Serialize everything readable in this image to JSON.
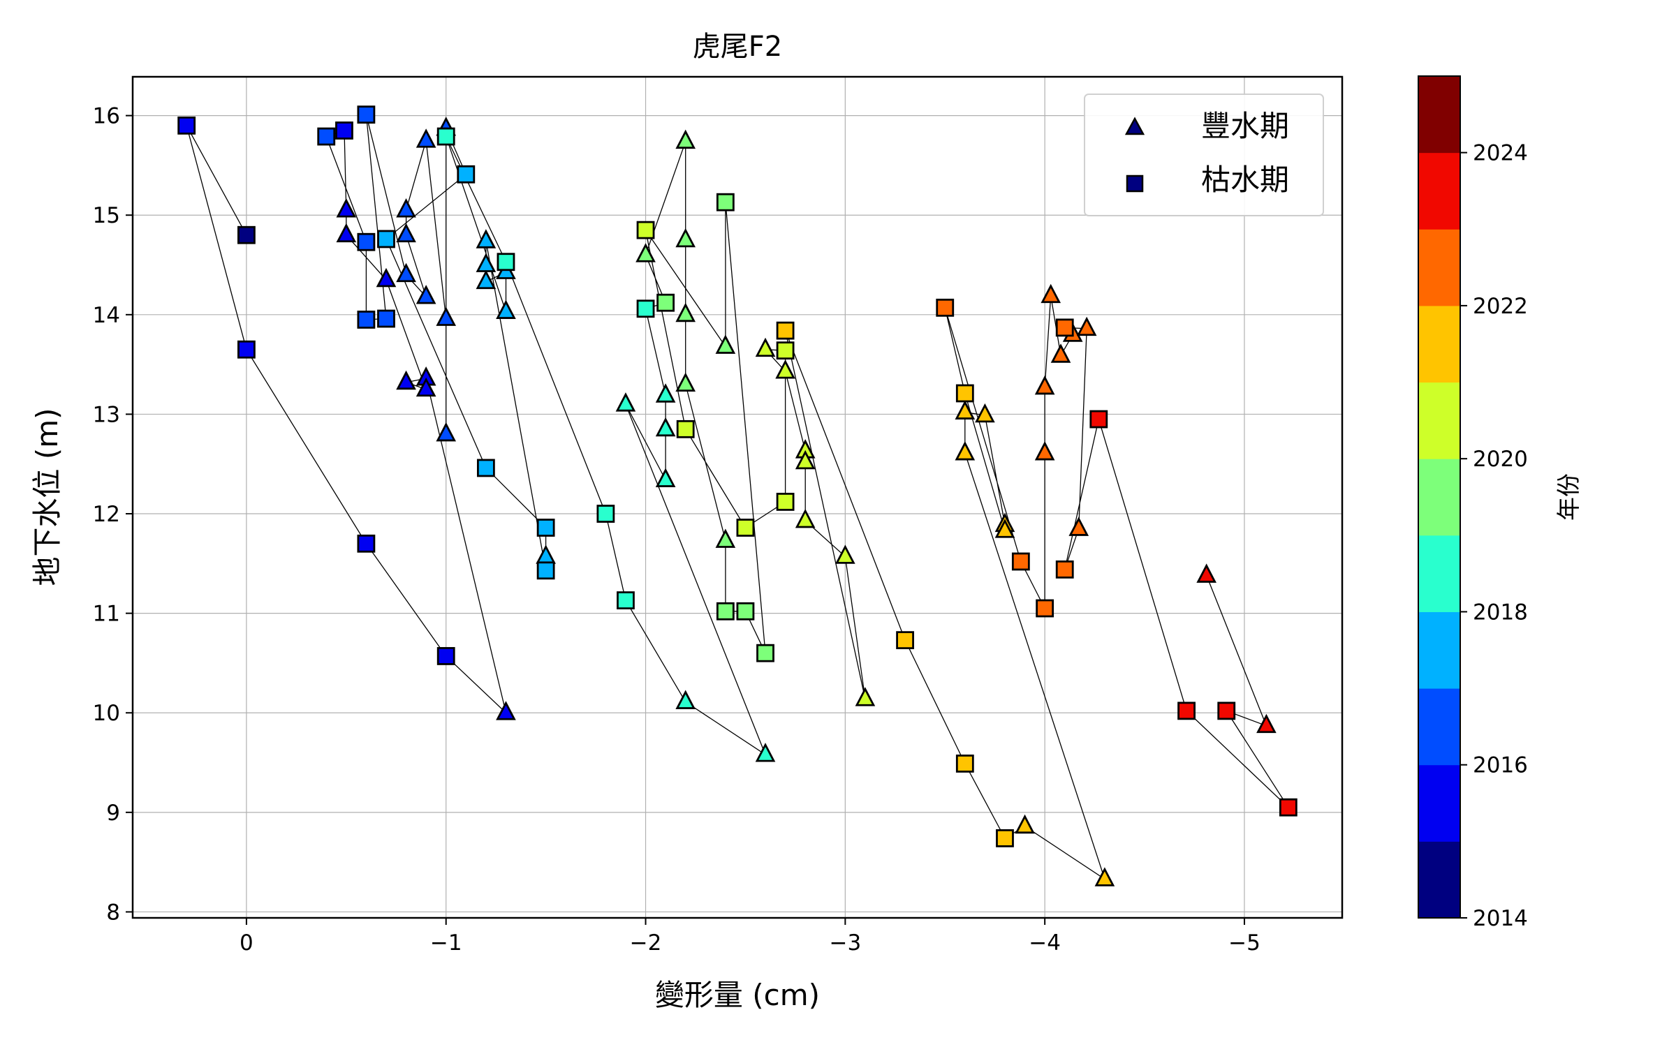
{
  "chart_data": {
    "type": "scatter",
    "title": "虎尾F2",
    "xlabel": "變形量 (cm)",
    "ylabel": "地下水位 (m)",
    "xlim": [
      0.57,
      -5.49
    ],
    "ylim": [
      7.94,
      16.39
    ],
    "xticks": [
      0,
      -1,
      -2,
      -3,
      -4,
      -5
    ],
    "xtick_labels": [
      "0",
      "−1",
      "−2",
      "−3",
      "−4",
      "−5"
    ],
    "yticks": [
      8,
      9,
      10,
      11,
      12,
      13,
      14,
      15,
      16
    ],
    "ytick_labels": [
      "8",
      "9",
      "10",
      "11",
      "12",
      "13",
      "14",
      "15",
      "16"
    ],
    "grid": true,
    "legend": {
      "placement": "top-right",
      "entries": [
        {
          "label": "豐水期",
          "marker": "triangle",
          "key": "wet"
        },
        {
          "label": "枯水期",
          "marker": "square",
          "key": "dry"
        }
      ],
      "marker_color": "#000080"
    },
    "colorbar": {
      "label": "年份",
      "range": [
        2014,
        2025
      ],
      "ticks": [
        2014,
        2016,
        2018,
        2020,
        2022,
        2024
      ],
      "tick_labels": [
        "2014",
        "2016",
        "2018",
        "2020",
        "2022",
        "2024"
      ],
      "year_colors": {
        "2014": "#000080",
        "2015": "#0000f1",
        "2016": "#004dff",
        "2017": "#00b1ff",
        "2018": "#29ffce",
        "2019": "#7dff7a",
        "2020": "#ceff29",
        "2021": "#ffc400",
        "2022": "#ff6800",
        "2023": "#f10800",
        "2024": "#800000"
      }
    },
    "series_fields": [
      "season",
      "year",
      "deformation_cm",
      "groundwater_m"
    ],
    "points": [
      [
        "dry",
        2014,
        0,
        14.8
      ],
      [
        "dry",
        2015,
        0.3,
        15.9
      ],
      [
        "dry",
        2015,
        0,
        13.65
      ],
      [
        "dry",
        2015,
        -0.6,
        11.7
      ],
      [
        "dry",
        2015,
        -1.0,
        10.57
      ],
      [
        "wet",
        2015,
        -1.3,
        10.0
      ],
      [
        "wet",
        2015,
        -0.9,
        13.36
      ],
      [
        "wet",
        2015,
        -0.8,
        13.32
      ],
      [
        "wet",
        2015,
        -0.9,
        13.25
      ],
      [
        "wet",
        2015,
        -0.7,
        14.35
      ],
      [
        "wet",
        2015,
        -0.5,
        14.8
      ],
      [
        "wet",
        2015,
        -0.5,
        15.05
      ],
      [
        "dry",
        2015,
        -0.49,
        15.85
      ],
      [
        "dry",
        2016,
        -0.4,
        15.79
      ],
      [
        "dry",
        2016,
        -0.6,
        14.73
      ],
      [
        "dry",
        2016,
        -0.6,
        13.95
      ],
      [
        "dry",
        2016,
        -0.7,
        13.96
      ],
      [
        "dry",
        2016,
        -0.6,
        16.01
      ],
      [
        "wet",
        2016,
        -0.8,
        14.4
      ],
      [
        "wet",
        2016,
        -0.9,
        14.18
      ],
      [
        "wet",
        2016,
        -0.8,
        14.8
      ],
      [
        "wet",
        2016,
        -0.8,
        15.05
      ],
      [
        "wet",
        2016,
        -0.9,
        15.75
      ],
      [
        "wet",
        2016,
        -1.0,
        13.96
      ],
      [
        "wet",
        2016,
        -1.0,
        12.8
      ],
      [
        "wet",
        2016,
        -1.0,
        15.87
      ],
      [
        "dry",
        2017,
        -1.1,
        15.41
      ],
      [
        "dry",
        2017,
        -0.7,
        14.76
      ],
      [
        "dry",
        2017,
        -1.2,
        12.46
      ],
      [
        "dry",
        2017,
        -1.5,
        11.86
      ],
      [
        "wet",
        2017,
        -1.5,
        11.57
      ],
      [
        "dry",
        2017,
        -1.5,
        11.43
      ],
      [
        "wet",
        2017,
        -1.2,
        14.74
      ],
      [
        "wet",
        2017,
        -1.2,
        14.5
      ],
      [
        "wet",
        2017,
        -1.2,
        14.33
      ],
      [
        "wet",
        2017,
        -1.3,
        14.43
      ],
      [
        "wet",
        2017,
        -1.3,
        14.03
      ],
      [
        "dry",
        2018,
        -1.0,
        15.79
      ],
      [
        "dry",
        2018,
        -1.3,
        14.53
      ],
      [
        "dry",
        2018,
        -1.8,
        12.0
      ],
      [
        "dry",
        2018,
        -1.9,
        11.13
      ],
      [
        "wet",
        2018,
        -2.2,
        10.11
      ],
      [
        "wet",
        2018,
        -2.6,
        9.58
      ],
      [
        "wet",
        2018,
        -1.9,
        13.1
      ],
      [
        "wet",
        2018,
        -2.1,
        12.34
      ],
      [
        "wet",
        2018,
        -2.1,
        12.85
      ],
      [
        "wet",
        2018,
        -2.1,
        13.19
      ],
      [
        "dry",
        2018,
        -2.0,
        14.06
      ],
      [
        "dry",
        2019,
        -2.1,
        14.12
      ],
      [
        "wet",
        2019,
        -2.0,
        14.6
      ],
      [
        "wet",
        2019,
        -2.2,
        15.74
      ],
      [
        "wet",
        2019,
        -2.2,
        14.75
      ],
      [
        "wet",
        2019,
        -2.2,
        14.0
      ],
      [
        "wet",
        2019,
        -2.2,
        13.3
      ],
      [
        "wet",
        2019,
        -2.4,
        11.73
      ],
      [
        "dry",
        2019,
        -2.4,
        11.02
      ],
      [
        "dry",
        2019,
        -2.5,
        11.02
      ],
      [
        "dry",
        2019,
        -2.6,
        10.6
      ],
      [
        "dry",
        2019,
        -2.4,
        15.13
      ],
      [
        "wet",
        2019,
        -2.4,
        13.68
      ],
      [
        "dry",
        2020,
        -2.0,
        14.85
      ],
      [
        "dry",
        2020,
        -2.2,
        12.85
      ],
      [
        "dry",
        2020,
        -2.5,
        11.86
      ],
      [
        "dry",
        2020,
        -2.7,
        12.12
      ],
      [
        "dry",
        2020,
        -2.7,
        13.64
      ],
      [
        "wet",
        2020,
        -2.6,
        13.65
      ],
      [
        "wet",
        2020,
        -2.7,
        13.43
      ],
      [
        "wet",
        2020,
        -2.8,
        12.63
      ],
      [
        "wet",
        2020,
        -2.8,
        12.52
      ],
      [
        "wet",
        2020,
        -2.8,
        11.93
      ],
      [
        "wet",
        2020,
        -3.0,
        11.57
      ],
      [
        "wet",
        2020,
        -3.1,
        10.14
      ],
      [
        "dry",
        2021,
        -2.7,
        13.84
      ],
      [
        "dry",
        2021,
        -3.3,
        10.73
      ],
      [
        "dry",
        2021,
        -3.6,
        9.49
      ],
      [
        "dry",
        2021,
        -3.8,
        8.74
      ],
      [
        "wet",
        2021,
        -3.9,
        8.86
      ],
      [
        "wet",
        2021,
        -4.3,
        8.33
      ],
      [
        "wet",
        2021,
        -3.6,
        12.61
      ],
      [
        "wet",
        2021,
        -3.6,
        13.02
      ],
      [
        "wet",
        2021,
        -3.7,
        12.99
      ],
      [
        "wet",
        2021,
        -3.8,
        11.89
      ],
      [
        "wet",
        2021,
        -3.8,
        11.83
      ],
      [
        "dry",
        2021,
        -3.6,
        13.21
      ],
      [
        "dry",
        2022,
        -3.5,
        14.07
      ],
      [
        "dry",
        2022,
        -3.88,
        11.52
      ],
      [
        "dry",
        2022,
        -4.0,
        11.05
      ],
      [
        "wet",
        2022,
        -4.0,
        12.61
      ],
      [
        "wet",
        2022,
        -4.0,
        13.27
      ],
      [
        "wet",
        2022,
        -4.03,
        14.19
      ],
      [
        "wet",
        2022,
        -4.08,
        13.59
      ],
      [
        "wet",
        2022,
        -4.14,
        13.8
      ],
      [
        "dry",
        2022,
        -4.1,
        13.87
      ],
      [
        "wet",
        2022,
        -4.21,
        13.86
      ],
      [
        "wet",
        2022,
        -4.17,
        11.85
      ],
      [
        "dry",
        2022,
        -4.1,
        11.44
      ],
      [
        "dry",
        2023,
        -4.27,
        12.95
      ],
      [
        "dry",
        2023,
        -4.71,
        10.02
      ],
      [
        "dry",
        2023,
        -5.22,
        9.05
      ],
      [
        "dry",
        2023,
        -4.91,
        10.02
      ],
      [
        "wet",
        2023,
        -5.11,
        9.87
      ],
      [
        "wet",
        2023,
        -4.81,
        11.38
      ]
    ]
  }
}
